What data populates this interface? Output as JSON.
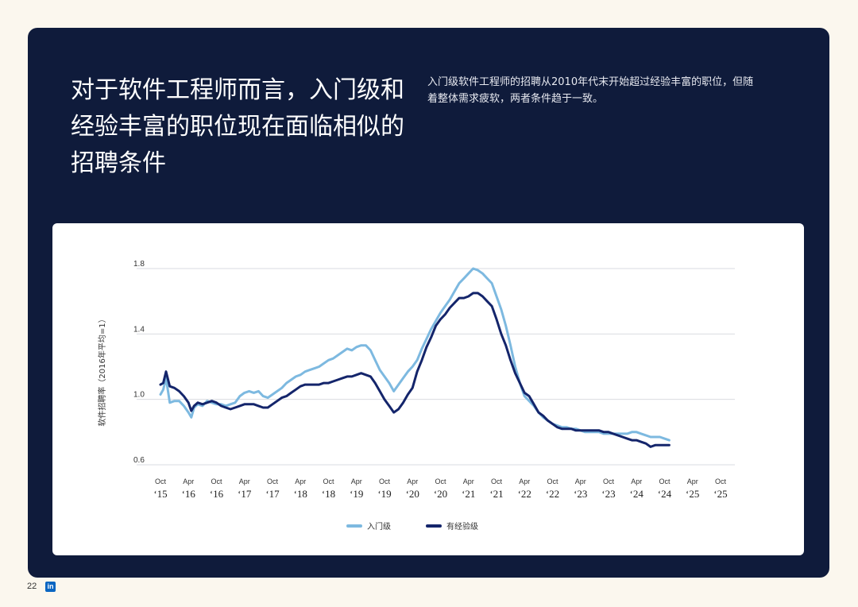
{
  "page": {
    "title": "对于软件工程师而言，入门级和经验丰富的职位现在面临相似的招聘条件",
    "subtitle": "入门级软件工程师的招聘从2010年代末开始超过经验丰富的职位，但随着整体需求疲软，两者条件趋于一致。",
    "page_number": "22",
    "logo_text": "in"
  },
  "colors": {
    "panel": "#0f1b3b",
    "entry": "#7db9e0",
    "experienced": "#14256b"
  },
  "chart_data": {
    "type": "line",
    "ylabel": "软件招聘率（2016年平均=1）",
    "xlabel": "",
    "ylim": [
      0.6,
      1.8
    ],
    "yticks": [
      "0.6",
      "1.0",
      "1.4",
      "1.8"
    ],
    "grid": true,
    "legend_position": "bottom-center",
    "xticks": [
      {
        "top": "Oct",
        "bottom": "‘15"
      },
      {
        "top": "Apr",
        "bottom": "‘16"
      },
      {
        "top": "Oct",
        "bottom": "‘16"
      },
      {
        "top": "Apr",
        "bottom": "‘17"
      },
      {
        "top": "Oct",
        "bottom": "‘17"
      },
      {
        "top": "Apr",
        "bottom": "‘18"
      },
      {
        "top": "Oct",
        "bottom": "‘18"
      },
      {
        "top": "Apr",
        "bottom": "‘19"
      },
      {
        "top": "Oct",
        "bottom": "‘19"
      },
      {
        "top": "Apr",
        "bottom": "‘20"
      },
      {
        "top": "Oct",
        "bottom": "‘20"
      },
      {
        "top": "Apr",
        "bottom": "‘21"
      },
      {
        "top": "Oct",
        "bottom": "‘21"
      },
      {
        "top": "Apr",
        "bottom": "‘22"
      },
      {
        "top": "Oct",
        "bottom": "‘22"
      },
      {
        "top": "Apr",
        "bottom": "‘23"
      },
      {
        "top": "Oct",
        "bottom": "‘23"
      },
      {
        "top": "Apr",
        "bottom": "‘24"
      },
      {
        "top": "Oct",
        "bottom": "‘24"
      },
      {
        "top": "Apr",
        "bottom": "‘25"
      },
      {
        "top": "Oct",
        "bottom": "‘25"
      }
    ],
    "series": [
      {
        "name": "入门级",
        "color": "#7db9e0",
        "points": [
          [
            0,
            1.03
          ],
          [
            0.3,
            1.06
          ],
          [
            0.6,
            1.13
          ],
          [
            1,
            0.98
          ],
          [
            1.5,
            0.99
          ],
          [
            2,
            0.99
          ],
          [
            2.5,
            0.96
          ],
          [
            3,
            0.92
          ],
          [
            3.3,
            0.89
          ],
          [
            3.6,
            0.95
          ],
          [
            4,
            0.97
          ],
          [
            4.5,
            0.96
          ],
          [
            5,
            0.99
          ],
          [
            5.5,
            0.98
          ],
          [
            6,
            0.97
          ],
          [
            6.5,
            0.97
          ],
          [
            7,
            0.96
          ],
          [
            7.5,
            0.97
          ],
          [
            8,
            0.98
          ],
          [
            8.5,
            1.02
          ],
          [
            9,
            1.04
          ],
          [
            9.5,
            1.05
          ],
          [
            10,
            1.04
          ],
          [
            10.5,
            1.05
          ],
          [
            11,
            1.02
          ],
          [
            11.5,
            1.01
          ],
          [
            12,
            1.03
          ],
          [
            12.5,
            1.05
          ],
          [
            13,
            1.07
          ],
          [
            13.5,
            1.1
          ],
          [
            14,
            1.12
          ],
          [
            14.5,
            1.14
          ],
          [
            15,
            1.15
          ],
          [
            15.5,
            1.17
          ],
          [
            16,
            1.18
          ],
          [
            16.5,
            1.19
          ],
          [
            17,
            1.2
          ],
          [
            17.5,
            1.22
          ],
          [
            18,
            1.24
          ],
          [
            18.5,
            1.25
          ],
          [
            19,
            1.27
          ],
          [
            19.5,
            1.29
          ],
          [
            20,
            1.31
          ],
          [
            20.5,
            1.3
          ],
          [
            21,
            1.32
          ],
          [
            21.5,
            1.33
          ],
          [
            22,
            1.33
          ],
          [
            22.5,
            1.3
          ],
          [
            23,
            1.24
          ],
          [
            23.5,
            1.18
          ],
          [
            24,
            1.14
          ],
          [
            24.5,
            1.1
          ],
          [
            25,
            1.05
          ],
          [
            25.5,
            1.09
          ],
          [
            26,
            1.13
          ],
          [
            26.5,
            1.17
          ],
          [
            27,
            1.2
          ],
          [
            27.5,
            1.24
          ],
          [
            28,
            1.31
          ],
          [
            28.5,
            1.37
          ],
          [
            29,
            1.43
          ],
          [
            29.5,
            1.48
          ],
          [
            30,
            1.53
          ],
          [
            30.5,
            1.57
          ],
          [
            31,
            1.61
          ],
          [
            31.5,
            1.66
          ],
          [
            32,
            1.71
          ],
          [
            32.5,
            1.74
          ],
          [
            33,
            1.77
          ],
          [
            33.5,
            1.8
          ],
          [
            34,
            1.79
          ],
          [
            34.5,
            1.77
          ],
          [
            35,
            1.74
          ],
          [
            35.5,
            1.71
          ],
          [
            36,
            1.63
          ],
          [
            36.5,
            1.55
          ],
          [
            37,
            1.45
          ],
          [
            37.5,
            1.33
          ],
          [
            38,
            1.2
          ],
          [
            38.5,
            1.1
          ],
          [
            39,
            1.02
          ],
          [
            39.5,
            0.99
          ],
          [
            40,
            0.96
          ],
          [
            40.5,
            0.92
          ],
          [
            41,
            0.89
          ],
          [
            41.5,
            0.87
          ],
          [
            42,
            0.85
          ],
          [
            42.5,
            0.84
          ],
          [
            43,
            0.83
          ],
          [
            43.5,
            0.83
          ],
          [
            44,
            0.82
          ],
          [
            44.5,
            0.82
          ],
          [
            45,
            0.81
          ],
          [
            45.5,
            0.8
          ],
          [
            46,
            0.8
          ],
          [
            46.5,
            0.8
          ],
          [
            47,
            0.8
          ],
          [
            47.5,
            0.79
          ],
          [
            48,
            0.79
          ],
          [
            48.5,
            0.79
          ],
          [
            49,
            0.79
          ],
          [
            49.5,
            0.79
          ],
          [
            50,
            0.79
          ],
          [
            50.5,
            0.8
          ],
          [
            51,
            0.8
          ],
          [
            51.5,
            0.79
          ],
          [
            52,
            0.78
          ],
          [
            52.5,
            0.77
          ],
          [
            53,
            0.77
          ],
          [
            53.5,
            0.77
          ],
          [
            54,
            0.76
          ],
          [
            54.5,
            0.75
          ]
        ]
      },
      {
        "name": "有经验级",
        "color": "#14256b",
        "points": [
          [
            0,
            1.09
          ],
          [
            0.3,
            1.1
          ],
          [
            0.6,
            1.17
          ],
          [
            1,
            1.08
          ],
          [
            1.5,
            1.07
          ],
          [
            2,
            1.05
          ],
          [
            2.5,
            1.02
          ],
          [
            3,
            0.98
          ],
          [
            3.3,
            0.93
          ],
          [
            3.6,
            0.96
          ],
          [
            4,
            0.98
          ],
          [
            4.5,
            0.97
          ],
          [
            5,
            0.98
          ],
          [
            5.5,
            0.99
          ],
          [
            6,
            0.98
          ],
          [
            6.5,
            0.96
          ],
          [
            7,
            0.95
          ],
          [
            7.5,
            0.94
          ],
          [
            8,
            0.95
          ],
          [
            8.5,
            0.96
          ],
          [
            9,
            0.97
          ],
          [
            9.5,
            0.97
          ],
          [
            10,
            0.97
          ],
          [
            10.5,
            0.96
          ],
          [
            11,
            0.95
          ],
          [
            11.5,
            0.95
          ],
          [
            12,
            0.97
          ],
          [
            12.5,
            0.99
          ],
          [
            13,
            1.01
          ],
          [
            13.5,
            1.02
          ],
          [
            14,
            1.04
          ],
          [
            14.5,
            1.06
          ],
          [
            15,
            1.08
          ],
          [
            15.5,
            1.09
          ],
          [
            16,
            1.09
          ],
          [
            16.5,
            1.09
          ],
          [
            17,
            1.09
          ],
          [
            17.5,
            1.1
          ],
          [
            18,
            1.1
          ],
          [
            18.5,
            1.11
          ],
          [
            19,
            1.12
          ],
          [
            19.5,
            1.13
          ],
          [
            20,
            1.14
          ],
          [
            20.5,
            1.14
          ],
          [
            21,
            1.15
          ],
          [
            21.5,
            1.16
          ],
          [
            22,
            1.15
          ],
          [
            22.5,
            1.14
          ],
          [
            23,
            1.1
          ],
          [
            23.5,
            1.05
          ],
          [
            24,
            1.0
          ],
          [
            24.5,
            0.96
          ],
          [
            25,
            0.92
          ],
          [
            25.5,
            0.94
          ],
          [
            26,
            0.98
          ],
          [
            26.5,
            1.03
          ],
          [
            27,
            1.07
          ],
          [
            27.5,
            1.17
          ],
          [
            28,
            1.24
          ],
          [
            28.5,
            1.32
          ],
          [
            29,
            1.38
          ],
          [
            29.5,
            1.45
          ],
          [
            30,
            1.49
          ],
          [
            30.5,
            1.52
          ],
          [
            31,
            1.56
          ],
          [
            31.5,
            1.59
          ],
          [
            32,
            1.62
          ],
          [
            32.5,
            1.62
          ],
          [
            33,
            1.63
          ],
          [
            33.5,
            1.65
          ],
          [
            34,
            1.65
          ],
          [
            34.5,
            1.63
          ],
          [
            35,
            1.6
          ],
          [
            35.5,
            1.57
          ],
          [
            36,
            1.49
          ],
          [
            36.5,
            1.4
          ],
          [
            37,
            1.33
          ],
          [
            37.5,
            1.24
          ],
          [
            38,
            1.16
          ],
          [
            38.5,
            1.1
          ],
          [
            39,
            1.04
          ],
          [
            39.5,
            1.02
          ],
          [
            40,
            0.97
          ],
          [
            40.5,
            0.92
          ],
          [
            41,
            0.9
          ],
          [
            41.5,
            0.87
          ],
          [
            42,
            0.85
          ],
          [
            42.5,
            0.83
          ],
          [
            43,
            0.82
          ],
          [
            43.5,
            0.82
          ],
          [
            44,
            0.82
          ],
          [
            44.5,
            0.81
          ],
          [
            45,
            0.81
          ],
          [
            45.5,
            0.81
          ],
          [
            46,
            0.81
          ],
          [
            46.5,
            0.81
          ],
          [
            47,
            0.81
          ],
          [
            47.5,
            0.8
          ],
          [
            48,
            0.8
          ],
          [
            48.5,
            0.79
          ],
          [
            49,
            0.78
          ],
          [
            49.5,
            0.77
          ],
          [
            50,
            0.76
          ],
          [
            50.5,
            0.75
          ],
          [
            51,
            0.75
          ],
          [
            51.5,
            0.74
          ],
          [
            52,
            0.73
          ],
          [
            52.5,
            0.71
          ],
          [
            53,
            0.72
          ],
          [
            53.5,
            0.72
          ],
          [
            54,
            0.72
          ],
          [
            54.5,
            0.72
          ]
        ]
      }
    ]
  }
}
